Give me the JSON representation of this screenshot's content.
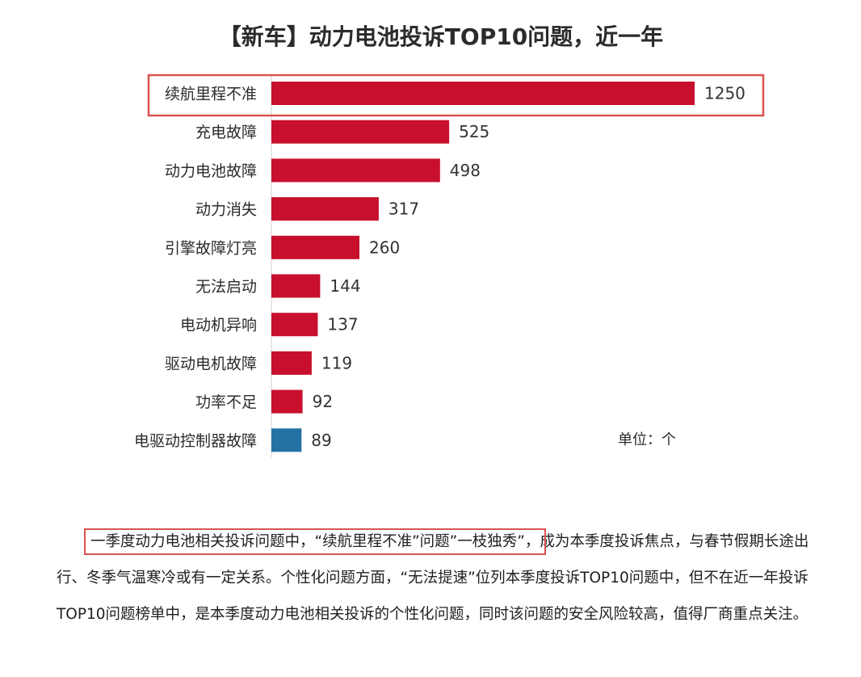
{
  "chart_data": {
    "type": "bar",
    "orientation": "horizontal",
    "title": "【新车】动力电池投诉TOP10问题，近一年",
    "unit_label": "单位：个",
    "categories": [
      "续航里程不准",
      "充电故障",
      "动力电池故障",
      "动力消失",
      "引擎故障灯亮",
      "无法启动",
      "电动机异响",
      "驱动电机故障",
      "功率不足",
      "电驱动控制器故障"
    ],
    "values": [
      1250,
      525,
      498,
      317,
      260,
      144,
      137,
      119,
      92,
      89
    ],
    "bar_colors": [
      "#c8102e",
      "#c8102e",
      "#c8102e",
      "#c8102e",
      "#c8102e",
      "#c8102e",
      "#c8102e",
      "#c8102e",
      "#c8102e",
      "#2471a3"
    ],
    "highlighted_category": "续航里程不准",
    "highlight_color": "#d9534f"
  },
  "paragraph": {
    "highlight": "一季度动力电池相关投诉问题中，“续航里程不准”问题”一枝独秀”，",
    "rest": "成为本季度投诉焦点，与春节假期长途出行、冬季气温寒冷或有一定关系。个性化问题方面，“无法提速”位列本季度投诉TOP10问题中，但不在近一年投诉TOP10问题榜单中，是本季度动力电池相关投诉的个性化问题，同时该问题的安全风险较高，值得厂商重点关注。"
  }
}
